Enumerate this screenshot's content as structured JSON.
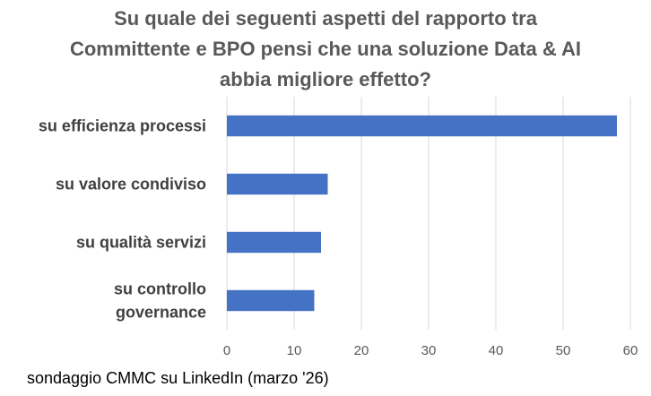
{
  "chart_data": {
    "type": "bar",
    "orientation": "horizontal",
    "title_lines": [
      "Su quale dei seguenti aspetti del rapporto tra",
      "Committente e BPO pensi che una soluzione Data & AI",
      "abbia migliore effetto?"
    ],
    "categories": [
      [
        "su efficienza processi"
      ],
      [
        "su valore condiviso"
      ],
      [
        "su qualità servizi"
      ],
      [
        "su controllo",
        "governance"
      ]
    ],
    "values": [
      58,
      15,
      14,
      13
    ],
    "xlim": [
      0,
      60
    ],
    "xticks": [
      0,
      10,
      20,
      30,
      40,
      50,
      60
    ],
    "gridlines": true,
    "legend": "none",
    "bar_color": "#4472C4",
    "grid_color": "#D9D9D9"
  },
  "footnote": "sondaggio CMMC su LinkedIn (marzo '26)"
}
